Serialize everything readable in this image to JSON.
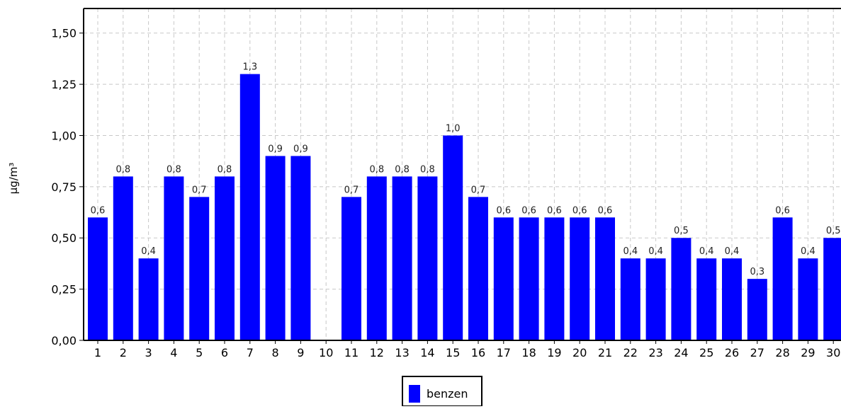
{
  "chart_data": {
    "type": "bar",
    "ylabel": "µg/m³",
    "ylim": [
      0,
      1.62
    ],
    "yticks": [
      "0,00",
      "0,25",
      "0,50",
      "0,75",
      "1,00",
      "1,25",
      "1,50"
    ],
    "ytick_values": [
      0,
      0.25,
      0.5,
      0.75,
      1.0,
      1.25,
      1.5
    ],
    "grid": true,
    "legend_position": "bottom-center",
    "bar_color": "#0000ff",
    "categories": [
      "1",
      "2",
      "3",
      "4",
      "5",
      "6",
      "7",
      "8",
      "9",
      "10",
      "11",
      "12",
      "13",
      "14",
      "15",
      "16",
      "17",
      "18",
      "19",
      "20",
      "21",
      "22",
      "23",
      "24",
      "25",
      "26",
      "27",
      "28",
      "29",
      "30"
    ],
    "series": [
      {
        "name": "benzen",
        "values": [
          0.6,
          0.8,
          0.4,
          0.8,
          0.7,
          0.8,
          1.3,
          0.9,
          0.9,
          null,
          0.7,
          0.8,
          0.8,
          0.8,
          1.0,
          0.7,
          0.6,
          0.6,
          0.6,
          0.6,
          0.6,
          0.4,
          0.4,
          0.5,
          0.4,
          0.4,
          0.3,
          0.6,
          0.4,
          0.5
        ],
        "labels": [
          "0,6",
          "0,8",
          "0,4",
          "0,8",
          "0,7",
          "0,8",
          "1,3",
          "0,9",
          "0,9",
          "",
          "0,7",
          "0,8",
          "0,8",
          "0,8",
          "1,0",
          "0,7",
          "0,6",
          "0,6",
          "0,6",
          "0,6",
          "0,6",
          "0,4",
          "0,4",
          "0,5",
          "0,4",
          "0,4",
          "0,3",
          "0,6",
          "0,4",
          "0,5"
        ]
      }
    ]
  }
}
